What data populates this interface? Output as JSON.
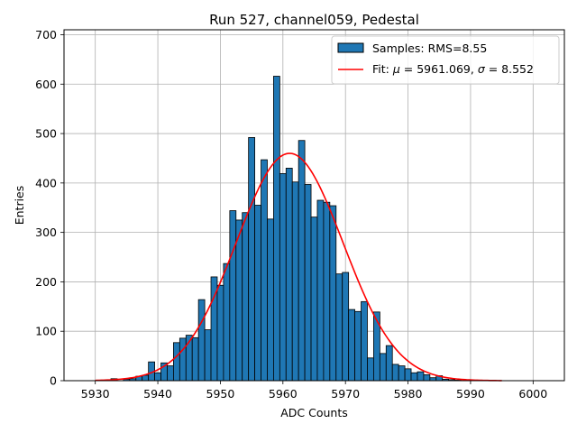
{
  "chart_data": {
    "type": "bar",
    "title": "Run 527, channel059, Pedestal",
    "xlabel": "ADC Counts",
    "ylabel": "Entries",
    "xlim": [
      5925,
      6005
    ],
    "ylim": [
      0,
      710
    ],
    "xticks": [
      5930,
      5940,
      5950,
      5960,
      5970,
      5980,
      5990,
      6000
    ],
    "yticks": [
      0,
      100,
      200,
      300,
      400,
      500,
      600,
      700
    ],
    "grid": true,
    "legend_position": "top-right",
    "bin_width": 1,
    "bar_color": "#1f77b4",
    "fit_color": "#ff0000",
    "series": [
      {
        "name": "Samples: RMS=8.55",
        "type": "histogram",
        "x": [
          5930,
          5931,
          5932,
          5933,
          5934,
          5935,
          5936,
          5937,
          5938,
          5939,
          5940,
          5941,
          5942,
          5943,
          5944,
          5945,
          5946,
          5947,
          5948,
          5949,
          5950,
          5951,
          5952,
          5953,
          5954,
          5955,
          5956,
          5957,
          5958,
          5959,
          5960,
          5961,
          5962,
          5963,
          5964,
          5965,
          5966,
          5967,
          5968,
          5969,
          5970,
          5971,
          5972,
          5973,
          5974,
          5975,
          5976,
          5977,
          5978,
          5979,
          5980,
          5981,
          5982,
          5983,
          5984,
          5985,
          5986,
          5987,
          5988,
          5989,
          5990,
          5991,
          5992,
          5993,
          5994,
          5995
        ],
        "values": [
          0,
          0,
          0,
          4,
          0,
          3,
          4,
          9,
          11,
          38,
          16,
          36,
          30,
          77,
          86,
          92,
          87,
          164,
          103,
          210,
          193,
          237,
          344,
          325,
          340,
          492,
          355,
          447,
          327,
          616,
          419,
          430,
          402,
          486,
          397,
          331,
          365,
          361,
          354,
          216,
          219,
          144,
          140,
          160,
          46,
          139,
          55,
          71,
          33,
          30,
          24,
          16,
          18,
          12,
          6,
          10,
          3,
          2,
          1,
          0,
          0,
          0,
          0,
          0,
          0,
          0
        ]
      },
      {
        "name": "Fit: μ = 5961.069, σ = 8.552",
        "type": "gaussian-fit",
        "mu": 5961.069,
        "sigma": 8.552,
        "amplitude": 460,
        "x_range": [
          5930,
          5995
        ]
      }
    ],
    "legend_entries": [
      {
        "label": "Samples: RMS=8.55",
        "marker": "patch"
      },
      {
        "label_prefix": "Fit: ",
        "mu_symbol": "μ",
        "mu_text": " = 5961.069, ",
        "sigma_symbol": "σ",
        "sigma_text": " = 8.552",
        "marker": "line"
      }
    ]
  }
}
